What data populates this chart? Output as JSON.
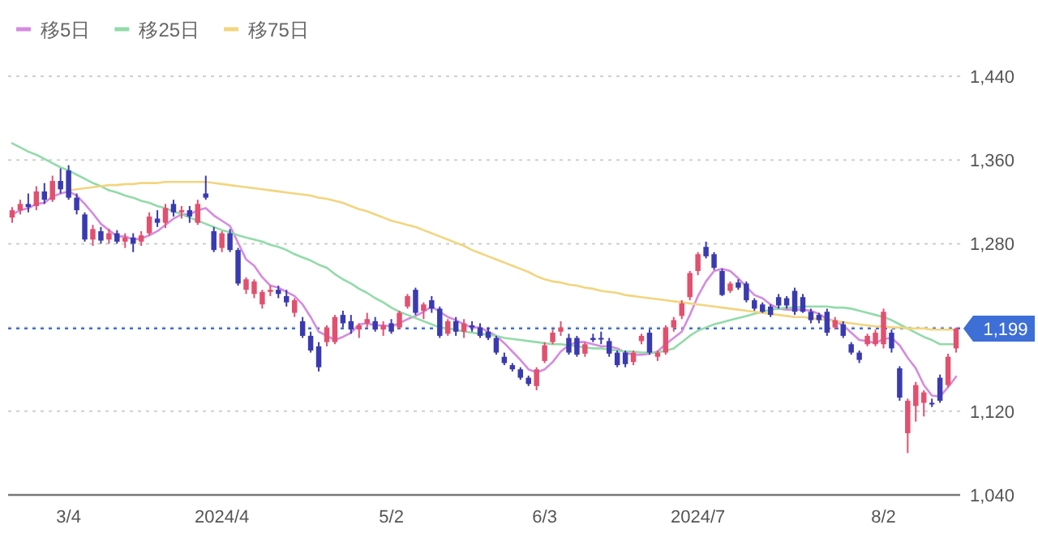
{
  "chart_data": {
    "type": "candlestick",
    "categories": [
      null,
      null,
      null,
      null,
      null,
      null,
      null,
      "3/4",
      null,
      null,
      null,
      null,
      null,
      null,
      null,
      null,
      null,
      null,
      null,
      null,
      null,
      null,
      null,
      null,
      null,
      null,
      "2024/4",
      null,
      null,
      null,
      null,
      null,
      null,
      null,
      null,
      null,
      null,
      null,
      null,
      null,
      null,
      null,
      null,
      null,
      null,
      null,
      null,
      "5/2",
      null,
      null,
      null,
      null,
      null,
      null,
      null,
      null,
      null,
      null,
      null,
      null,
      null,
      null,
      null,
      null,
      null,
      null,
      "6/3",
      null,
      null,
      null,
      null,
      null,
      null,
      null,
      null,
      null,
      null,
      null,
      null,
      null,
      null,
      null,
      null,
      null,
      null,
      "2024/7",
      null,
      null,
      null,
      null,
      null,
      null,
      null,
      null,
      null,
      null,
      null,
      null,
      null,
      null,
      null,
      null,
      null,
      null,
      null,
      null,
      null,
      null,
      "8/2",
      null,
      null,
      null,
      null,
      null,
      null,
      null,
      null,
      null
    ],
    "ohlc": [
      [
        1305,
        1315,
        1300,
        1312
      ],
      [
        1312,
        1322,
        1308,
        1318
      ],
      [
        1318,
        1328,
        1310,
        1315
      ],
      [
        1316,
        1335,
        1312,
        1330
      ],
      [
        1330,
        1338,
        1318,
        1322
      ],
      [
        1322,
        1345,
        1320,
        1340
      ],
      [
        1340,
        1352,
        1328,
        1332
      ],
      [
        1350,
        1355,
        1322,
        1324
      ],
      [
        1324,
        1328,
        1308,
        1312
      ],
      [
        1308,
        1310,
        1282,
        1284
      ],
      [
        1284,
        1298,
        1278,
        1294
      ],
      [
        1292,
        1296,
        1280,
        1283
      ],
      [
        1284,
        1294,
        1280,
        1290
      ],
      [
        1290,
        1293,
        1280,
        1282
      ],
      [
        1282,
        1290,
        1276,
        1286
      ],
      [
        1286,
        1290,
        1272,
        1280
      ],
      [
        1282,
        1292,
        1278,
        1288
      ],
      [
        1290,
        1310,
        1288,
        1306
      ],
      [
        1304,
        1312,
        1296,
        1300
      ],
      [
        1300,
        1318,
        1295,
        1314
      ],
      [
        1318,
        1322,
        1306,
        1310
      ],
      [
        1310,
        1316,
        1304,
        1312
      ],
      [
        1312,
        1316,
        1300,
        1306
      ],
      [
        1300,
        1322,
        1298,
        1318
      ],
      [
        1328,
        1345,
        1322,
        1324
      ],
      [
        1292,
        1296,
        1272,
        1274
      ],
      [
        1276,
        1292,
        1272,
        1290
      ],
      [
        1290,
        1294,
        1272,
        1274
      ],
      [
        1274,
        1276,
        1240,
        1242
      ],
      [
        1236,
        1248,
        1232,
        1246
      ],
      [
        1232,
        1246,
        1228,
        1244
      ],
      [
        1222,
        1236,
        1218,
        1234
      ],
      [
        1234,
        1240,
        1230,
        1236
      ],
      [
        1236,
        1240,
        1228,
        1232
      ],
      [
        1230,
        1236,
        1220,
        1224
      ],
      [
        1214,
        1228,
        1210,
        1226
      ],
      [
        1206,
        1210,
        1190,
        1192
      ],
      [
        1192,
        1196,
        1176,
        1178
      ],
      [
        1182,
        1186,
        1158,
        1162
      ],
      [
        1186,
        1202,
        1182,
        1200
      ],
      [
        1186,
        1212,
        1184,
        1210
      ],
      [
        1212,
        1216,
        1200,
        1204
      ],
      [
        1206,
        1212,
        1194,
        1198
      ],
      [
        1198,
        1204,
        1190,
        1202
      ],
      [
        1204,
        1214,
        1200,
        1208
      ],
      [
        1206,
        1210,
        1196,
        1198
      ],
      [
        1198,
        1206,
        1192,
        1202
      ],
      [
        1204,
        1208,
        1194,
        1196
      ],
      [
        1200,
        1216,
        1198,
        1214
      ],
      [
        1220,
        1232,
        1218,
        1230
      ],
      [
        1236,
        1238,
        1212,
        1214
      ],
      [
        1216,
        1224,
        1208,
        1222
      ],
      [
        1226,
        1230,
        1214,
        1218
      ],
      [
        1218,
        1220,
        1190,
        1192
      ],
      [
        1194,
        1208,
        1192,
        1206
      ],
      [
        1206,
        1210,
        1192,
        1196
      ],
      [
        1196,
        1208,
        1190,
        1204
      ],
      [
        1202,
        1206,
        1196,
        1200
      ],
      [
        1200,
        1204,
        1190,
        1192
      ],
      [
        1196,
        1200,
        1188,
        1190
      ],
      [
        1190,
        1192,
        1174,
        1176
      ],
      [
        1172,
        1176,
        1164,
        1166
      ],
      [
        1164,
        1166,
        1158,
        1160
      ],
      [
        1160,
        1162,
        1150,
        1152
      ],
      [
        1152,
        1154,
        1144,
        1146
      ],
      [
        1144,
        1162,
        1140,
        1160
      ],
      [
        1168,
        1186,
        1166,
        1183
      ],
      [
        1186,
        1198,
        1184,
        1195
      ],
      [
        1196,
        1206,
        1192,
        1200
      ],
      [
        1190,
        1194,
        1174,
        1176
      ],
      [
        1190,
        1192,
        1172,
        1174
      ],
      [
        1175,
        1186,
        1172,
        1184
      ],
      [
        1190,
        1194,
        1186,
        1188
      ],
      [
        1190,
        1196,
        1184,
        1190
      ],
      [
        1187,
        1190,
        1172,
        1175
      ],
      [
        1176,
        1178,
        1162,
        1164
      ],
      [
        1176,
        1178,
        1162,
        1165
      ],
      [
        1167,
        1178,
        1164,
        1176
      ],
      [
        1187,
        1194,
        1184,
        1192
      ],
      [
        1195,
        1198,
        1174,
        1176
      ],
      [
        1172,
        1178,
        1168,
        1176
      ],
      [
        1176,
        1202,
        1174,
        1200
      ],
      [
        1200,
        1210,
        1196,
        1207
      ],
      [
        1211,
        1226,
        1208,
        1223
      ],
      [
        1229,
        1254,
        1226,
        1252
      ],
      [
        1254,
        1272,
        1250,
        1270
      ],
      [
        1277,
        1282,
        1266,
        1268
      ],
      [
        1270,
        1272,
        1255,
        1257
      ],
      [
        1254,
        1256,
        1230,
        1231
      ],
      [
        1235,
        1244,
        1233,
        1242
      ],
      [
        1243,
        1246,
        1236,
        1238
      ],
      [
        1242,
        1244,
        1224,
        1226
      ],
      [
        1226,
        1228,
        1216,
        1218
      ],
      [
        1222,
        1224,
        1214,
        1215
      ],
      [
        1220,
        1222,
        1210,
        1212
      ],
      [
        1229,
        1232,
        1218,
        1221
      ],
      [
        1228,
        1230,
        1218,
        1221
      ],
      [
        1235,
        1238,
        1212,
        1215
      ],
      [
        1229,
        1232,
        1214,
        1215
      ],
      [
        1215,
        1218,
        1204,
        1207
      ],
      [
        1212,
        1214,
        1204,
        1207
      ],
      [
        1215,
        1218,
        1192,
        1195
      ],
      [
        1200,
        1210,
        1198,
        1207
      ],
      [
        1203,
        1206,
        1190,
        1192
      ],
      [
        1184,
        1186,
        1174,
        1176
      ],
      [
        1176,
        1178,
        1166,
        1169
      ],
      [
        1184,
        1194,
        1182,
        1192
      ],
      [
        1184,
        1198,
        1182,
        1195
      ],
      [
        1184,
        1218,
        1180,
        1215
      ],
      [
        1195,
        1198,
        1176,
        1180
      ],
      [
        1161,
        1163,
        1130,
        1133
      ],
      [
        1099,
        1132,
        1080,
        1130
      ],
      [
        1125,
        1148,
        1110,
        1145
      ],
      [
        1128,
        1140,
        1115,
        1138
      ],
      [
        1128,
        1132,
        1124,
        1128
      ],
      [
        1152,
        1155,
        1128,
        1130
      ],
      [
        1145,
        1175,
        1143,
        1172
      ],
      [
        1180,
        1200,
        1176,
        1199
      ]
    ],
    "colors": [
      "#e2506f",
      "#e2506f",
      "#3a3ab0",
      "#e2506f",
      "#3a3ab0",
      "#e2506f",
      "#3a3ab0",
      "#3a3ab0",
      "#3a3ab0",
      "#3a3ab0",
      "#e2506f",
      "#3a3ab0",
      "#e2506f",
      "#3a3ab0",
      "#e2506f",
      "#3a3ab0",
      "#e2506f",
      "#e2506f",
      "#3a3ab0",
      "#e2506f",
      "#3a3ab0",
      "#e2506f",
      "#3a3ab0",
      "#e2506f",
      "#3a3ab0",
      "#3a3ab0",
      "#e2506f",
      "#3a3ab0",
      "#3a3ab0",
      "#e2506f",
      "#e2506f",
      "#e2506f",
      "#e2506f",
      "#3a3ab0",
      "#3a3ab0",
      "#e2506f",
      "#3a3ab0",
      "#3a3ab0",
      "#3a3ab0",
      "#e2506f",
      "#e2506f",
      "#3a3ab0",
      "#3a3ab0",
      "#e2506f",
      "#e2506f",
      "#3a3ab0",
      "#e2506f",
      "#3a3ab0",
      "#e2506f",
      "#e2506f",
      "#3a3ab0",
      "#e2506f",
      "#3a3ab0",
      "#3a3ab0",
      "#e2506f",
      "#3a3ab0",
      "#e2506f",
      "#3a3ab0",
      "#3a3ab0",
      "#3a3ab0",
      "#3a3ab0",
      "#3a3ab0",
      "#3a3ab0",
      "#3a3ab0",
      "#3a3ab0",
      "#e2506f",
      "#e2506f",
      "#e2506f",
      "#e2506f",
      "#3a3ab0",
      "#3a3ab0",
      "#e2506f",
      "#3a3ab0",
      "#3a3ab0",
      "#3a3ab0",
      "#3a3ab0",
      "#3a3ab0",
      "#e2506f",
      "#e2506f",
      "#3a3ab0",
      "#e2506f",
      "#e2506f",
      "#e2506f",
      "#e2506f",
      "#e2506f",
      "#e2506f",
      "#3a3ab0",
      "#3a3ab0",
      "#3a3ab0",
      "#e2506f",
      "#3a3ab0",
      "#3a3ab0",
      "#3a3ab0",
      "#3a3ab0",
      "#3a3ab0",
      "#3a3ab0",
      "#3a3ab0",
      "#3a3ab0",
      "#3a3ab0",
      "#3a3ab0",
      "#3a3ab0",
      "#3a3ab0",
      "#e2506f",
      "#3a3ab0",
      "#3a3ab0",
      "#3a3ab0",
      "#e2506f",
      "#e2506f",
      "#e2506f",
      "#3a3ab0",
      "#3a3ab0",
      "#e2506f",
      "#e2506f",
      "#e2506f",
      "#3a3ab0",
      "#3a3ab0",
      "#e2506f",
      "#e2506f"
    ],
    "series": [
      {
        "name": "移5日",
        "type": "line",
        "color": "#d58be0",
        "values": [
          1308,
          1312,
          1314,
          1318,
          1319,
          1325,
          1328,
          1330,
          1326,
          1318,
          1309,
          1299,
          1293,
          1287,
          1287,
          1284,
          1285,
          1288,
          1292,
          1298,
          1304,
          1308,
          1308,
          1312,
          1314,
          1307,
          1302,
          1297,
          1281,
          1265,
          1259,
          1248,
          1240,
          1238,
          1234,
          1230,
          1222,
          1210,
          1196,
          1192,
          1188,
          1191,
          1195,
          1203,
          1204,
          1202,
          1202,
          1201,
          1204,
          1208,
          1211,
          1215,
          1220,
          1215,
          1210,
          1207,
          1203,
          1200,
          1200,
          1196,
          1192,
          1185,
          1177,
          1169,
          1160,
          1157,
          1160,
          1167,
          1177,
          1183,
          1186,
          1186,
          1184,
          1182,
          1182,
          1180,
          1176,
          1174,
          1174,
          1175,
          1177,
          1184,
          1190,
          1196,
          1212,
          1230,
          1244,
          1254,
          1256,
          1254,
          1247,
          1239,
          1231,
          1228,
          1222,
          1218,
          1217,
          1217,
          1217,
          1216,
          1213,
          1208,
          1206,
          1202,
          1195,
          1188,
          1187,
          1185,
          1189,
          1190,
          1183,
          1171,
          1161,
          1145,
          1135,
          1134,
          1143,
          1153
        ]
      },
      {
        "name": "移25日",
        "type": "line",
        "color": "#92dba9",
        "values": [
          1376,
          1372,
          1368,
          1365,
          1361,
          1357,
          1353,
          1350,
          1346,
          1342,
          1338,
          1335,
          1331,
          1329,
          1326,
          1324,
          1321,
          1319,
          1316,
          1314,
          1311,
          1308,
          1305,
          1302,
          1299,
          1296,
          1293,
          1291,
          1288,
          1286,
          1284,
          1282,
          1279,
          1277,
          1274,
          1270,
          1267,
          1264,
          1260,
          1257,
          1251,
          1246,
          1242,
          1237,
          1233,
          1228,
          1224,
          1219,
          1215,
          1212,
          1209,
          1206,
          1203,
          1200,
          1199,
          1198,
          1196,
          1195,
          1194,
          1193,
          1192,
          1190,
          1189,
          1188,
          1187,
          1186,
          1185,
          1184,
          1184,
          1183,
          1182,
          1181,
          1180,
          1180,
          1179,
          1178,
          1177,
          1177,
          1176,
          1176,
          1176,
          1178,
          1180,
          1186,
          1192,
          1197,
          1200,
          1203,
          1205,
          1207,
          1209,
          1211,
          1213,
          1215,
          1217,
          1218,
          1219,
          1219,
          1220,
          1220,
          1220,
          1220,
          1219,
          1219,
          1218,
          1216,
          1214,
          1212,
          1210,
          1207,
          1203,
          1199,
          1195,
          1191,
          1188,
          1184,
          1184,
          1184
        ]
      },
      {
        "name": "移75日",
        "type": "line",
        "color": "#f2d57e",
        "values": [
          null,
          null,
          null,
          null,
          null,
          null,
          null,
          1331,
          1332,
          1333,
          1334,
          1335,
          1336,
          1336,
          1337,
          1337,
          1338,
          1338,
          1338,
          1339,
          1339,
          1339,
          1339,
          1339,
          1339,
          1338,
          1337,
          1336,
          1335,
          1334,
          1333,
          1332,
          1331,
          1330,
          1329,
          1328,
          1327,
          1326,
          1324,
          1323,
          1321,
          1319,
          1316,
          1313,
          1311,
          1308,
          1305,
          1302,
          1300,
          1298,
          1296,
          1293,
          1290,
          1287,
          1284,
          1281,
          1278,
          1274,
          1271,
          1268,
          1265,
          1262,
          1259,
          1256,
          1253,
          1249,
          1246,
          1244,
          1243,
          1241,
          1240,
          1238,
          1237,
          1235,
          1234,
          1233,
          1231,
          1230,
          1229,
          1228,
          1227,
          1226,
          1225,
          1224,
          1223,
          1222,
          1221,
          1220,
          1219,
          1218,
          1217,
          1216,
          1215,
          1214,
          1213,
          1212,
          1211,
          1210,
          1210,
          1209,
          1208,
          1207,
          1206,
          1205,
          1204,
          1203,
          1202,
          1201,
          1201,
          1200,
          1200,
          1199,
          1199,
          1199,
          1198,
          1198,
          1198,
          1198
        ]
      }
    ],
    "ylim": [
      1040,
      1440
    ],
    "yticks": [
      {
        "value": 1040,
        "label": "1,040"
      },
      {
        "value": 1120,
        "label": "1,120"
      },
      {
        "value": 1200,
        "label": null
      },
      {
        "value": 1280,
        "label": "1,280"
      },
      {
        "value": 1360,
        "label": "1,360"
      },
      {
        "value": 1440,
        "label": "1,440"
      }
    ],
    "ref_lines": [
      {
        "axis": "y",
        "value": 1199,
        "label": "1,199",
        "color": "#3d6fd6",
        "line_style": "dotted"
      }
    ],
    "grid": "y",
    "legend": "top left"
  }
}
